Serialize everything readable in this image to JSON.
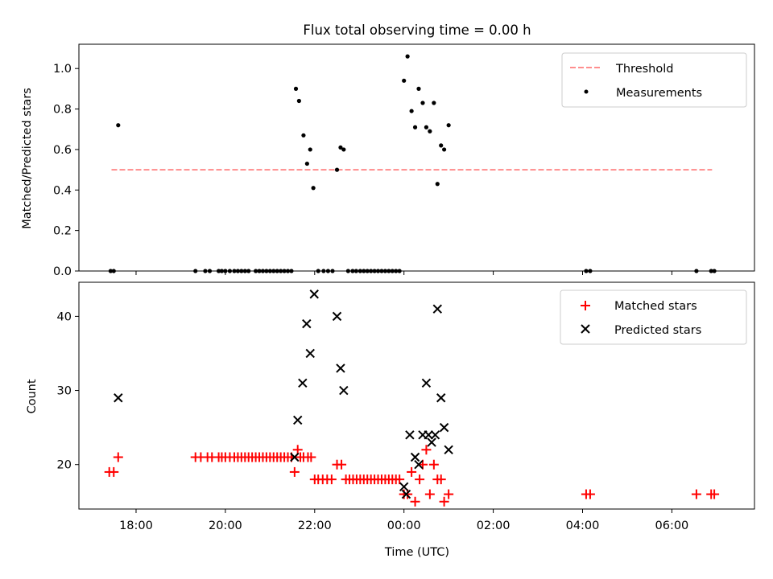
{
  "title": "Flux total observing time = 0.00 h",
  "colors": {
    "threshold": "#ff7f7f",
    "measurement": "#000000",
    "matched": "#ff0000",
    "predicted": "#000000"
  },
  "chart_data": [
    {
      "type": "scatter",
      "ylabel": "Matched/Predicted stars",
      "ylim": [
        0,
        1.12
      ],
      "yticks": [
        0.0,
        0.2,
        0.4,
        0.6,
        0.8,
        1.0
      ],
      "ytick_labels": [
        "0.0",
        "0.2",
        "0.4",
        "0.6",
        "0.8",
        "1.0"
      ],
      "xlim": [
        16.72,
        31.85
      ],
      "grid": false,
      "legend_position": "top-right",
      "legend": [
        "Threshold",
        "Measurements"
      ],
      "threshold": {
        "name": "Threshold",
        "y": 0.5,
        "x": [
          17.45,
          30.9
        ],
        "style": "dashed"
      },
      "series": [
        {
          "name": "Measurements",
          "points": [
            [
              17.43,
              0.0
            ],
            [
              17.5,
              0.0
            ],
            [
              17.6,
              0.72
            ],
            [
              19.33,
              0.0
            ],
            [
              19.55,
              0.0
            ],
            [
              19.65,
              0.0
            ],
            [
              19.85,
              0.0
            ],
            [
              19.92,
              0.0
            ],
            [
              20.0,
              0.0
            ],
            [
              20.1,
              0.0
            ],
            [
              20.2,
              0.0
            ],
            [
              20.28,
              0.0
            ],
            [
              20.36,
              0.0
            ],
            [
              20.44,
              0.0
            ],
            [
              20.52,
              0.0
            ],
            [
              20.68,
              0.0
            ],
            [
              20.76,
              0.0
            ],
            [
              20.84,
              0.0
            ],
            [
              20.92,
              0.0
            ],
            [
              21.0,
              0.0
            ],
            [
              21.08,
              0.0
            ],
            [
              21.16,
              0.0
            ],
            [
              21.24,
              0.0
            ],
            [
              21.32,
              0.0
            ],
            [
              21.4,
              0.0
            ],
            [
              21.48,
              0.0
            ],
            [
              21.58,
              0.9
            ],
            [
              21.65,
              0.84
            ],
            [
              21.75,
              0.67
            ],
            [
              21.83,
              0.53
            ],
            [
              21.9,
              0.6
            ],
            [
              21.97,
              0.41
            ],
            [
              22.08,
              0.0
            ],
            [
              22.2,
              0.0
            ],
            [
              22.3,
              0.0
            ],
            [
              22.4,
              0.0
            ],
            [
              22.5,
              0.5
            ],
            [
              22.58,
              0.61
            ],
            [
              22.65,
              0.6
            ],
            [
              22.75,
              0.0
            ],
            [
              22.85,
              0.0
            ],
            [
              22.93,
              0.0
            ],
            [
              23.02,
              0.0
            ],
            [
              23.1,
              0.0
            ],
            [
              23.18,
              0.0
            ],
            [
              23.26,
              0.0
            ],
            [
              23.34,
              0.0
            ],
            [
              23.42,
              0.0
            ],
            [
              23.5,
              0.0
            ],
            [
              23.58,
              0.0
            ],
            [
              23.66,
              0.0
            ],
            [
              23.74,
              0.0
            ],
            [
              23.82,
              0.0
            ],
            [
              23.9,
              0.0
            ],
            [
              24.0,
              0.94
            ],
            [
              24.08,
              1.06
            ],
            [
              24.17,
              0.79
            ],
            [
              24.25,
              0.71
            ],
            [
              24.33,
              0.9
            ],
            [
              24.42,
              0.83
            ],
            [
              24.5,
              0.71
            ],
            [
              24.58,
              0.69
            ],
            [
              24.67,
              0.83
            ],
            [
              24.75,
              0.43
            ],
            [
              24.83,
              0.62
            ],
            [
              24.9,
              0.6
            ],
            [
              25.0,
              0.72
            ],
            [
              28.08,
              0.0
            ],
            [
              28.17,
              0.0
            ],
            [
              30.55,
              0.0
            ],
            [
              30.88,
              0.0
            ],
            [
              30.95,
              0.0
            ]
          ]
        }
      ]
    },
    {
      "type": "scatter",
      "ylabel": "Count",
      "xlabel": "Time (UTC)",
      "ylim": [
        14,
        44.6
      ],
      "yticks": [
        20,
        30,
        40
      ],
      "ytick_labels": [
        "20",
        "30",
        "40"
      ],
      "xlim": [
        16.72,
        31.85
      ],
      "xticks": [
        18,
        20,
        22,
        24,
        26,
        28,
        30
      ],
      "xtick_labels": [
        "18:00",
        "20:00",
        "22:00",
        "00:00",
        "02:00",
        "04:00",
        "06:00"
      ],
      "grid": false,
      "legend_position": "top-right",
      "legend": [
        "Matched stars",
        "Predicted stars"
      ],
      "series": [
        {
          "name": "Matched stars",
          "marker": "+",
          "points": [
            [
              17.4,
              19
            ],
            [
              17.5,
              19
            ],
            [
              17.6,
              21
            ],
            [
              19.33,
              21
            ],
            [
              19.45,
              21
            ],
            [
              19.6,
              21
            ],
            [
              19.7,
              21
            ],
            [
              19.85,
              21
            ],
            [
              19.92,
              21
            ],
            [
              20.0,
              21
            ],
            [
              20.1,
              21
            ],
            [
              20.2,
              21
            ],
            [
              20.28,
              21
            ],
            [
              20.36,
              21
            ],
            [
              20.44,
              21
            ],
            [
              20.52,
              21
            ],
            [
              20.6,
              21
            ],
            [
              20.68,
              21
            ],
            [
              20.76,
              21
            ],
            [
              20.84,
              21
            ],
            [
              20.92,
              21
            ],
            [
              21.0,
              21
            ],
            [
              21.08,
              21
            ],
            [
              21.16,
              21
            ],
            [
              21.24,
              21
            ],
            [
              21.32,
              21
            ],
            [
              21.4,
              21
            ],
            [
              21.48,
              21
            ],
            [
              21.55,
              19
            ],
            [
              21.62,
              22
            ],
            [
              21.68,
              21
            ],
            [
              21.75,
              21
            ],
            [
              21.85,
              21
            ],
            [
              21.92,
              21
            ],
            [
              22.0,
              18
            ],
            [
              22.08,
              18
            ],
            [
              22.18,
              18
            ],
            [
              22.28,
              18
            ],
            [
              22.38,
              18
            ],
            [
              22.5,
              20
            ],
            [
              22.6,
              20
            ],
            [
              22.7,
              18
            ],
            [
              22.78,
              18
            ],
            [
              22.86,
              18
            ],
            [
              22.94,
              18
            ],
            [
              23.02,
              18
            ],
            [
              23.1,
              18
            ],
            [
              23.18,
              18
            ],
            [
              23.26,
              18
            ],
            [
              23.34,
              18
            ],
            [
              23.42,
              18
            ],
            [
              23.5,
              18
            ],
            [
              23.58,
              18
            ],
            [
              23.66,
              18
            ],
            [
              23.74,
              18
            ],
            [
              23.82,
              18
            ],
            [
              23.9,
              18
            ],
            [
              24.0,
              16
            ],
            [
              24.08,
              16
            ],
            [
              24.17,
              19
            ],
            [
              24.25,
              15
            ],
            [
              24.35,
              18
            ],
            [
              24.42,
              20
            ],
            [
              24.5,
              22
            ],
            [
              24.58,
              16
            ],
            [
              24.67,
              20
            ],
            [
              24.75,
              18
            ],
            [
              24.83,
              18
            ],
            [
              24.9,
              15
            ],
            [
              25.0,
              16
            ],
            [
              28.08,
              16
            ],
            [
              28.17,
              16
            ],
            [
              30.55,
              16
            ],
            [
              30.88,
              16
            ],
            [
              30.95,
              16
            ]
          ]
        },
        {
          "name": "Predicted stars",
          "marker": "x",
          "points": [
            [
              17.6,
              29
            ],
            [
              21.55,
              21
            ],
            [
              21.62,
              26
            ],
            [
              21.73,
              31
            ],
            [
              21.82,
              39
            ],
            [
              21.9,
              35
            ],
            [
              21.99,
              43
            ],
            [
              22.5,
              40
            ],
            [
              22.58,
              33
            ],
            [
              22.65,
              30
            ],
            [
              24.0,
              17
            ],
            [
              24.05,
              16
            ],
            [
              24.13,
              24
            ],
            [
              24.25,
              21
            ],
            [
              24.33,
              20
            ],
            [
              24.42,
              24
            ],
            [
              24.5,
              31
            ],
            [
              24.55,
              24
            ],
            [
              24.62,
              23
            ],
            [
              24.7,
              24
            ],
            [
              24.75,
              41
            ],
            [
              24.83,
              29
            ],
            [
              24.9,
              25
            ],
            [
              25.0,
              22
            ]
          ]
        }
      ]
    }
  ]
}
